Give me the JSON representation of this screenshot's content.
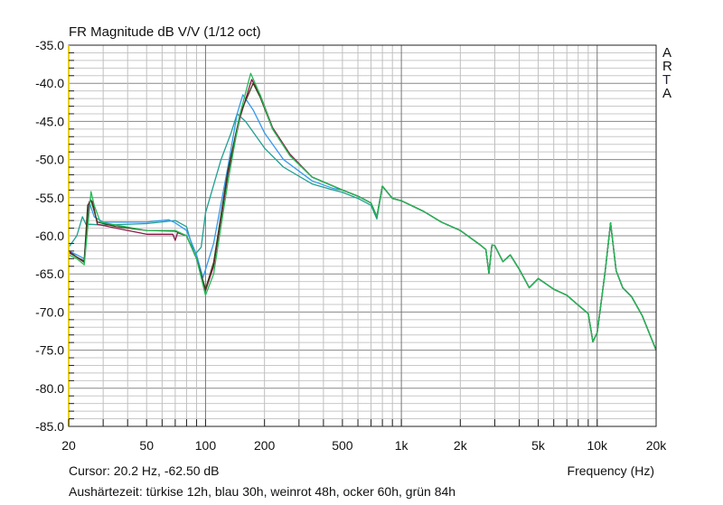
{
  "chart_data": {
    "type": "line",
    "title": "FR Magnitude dB V/V (1/12 oct)",
    "xlabel": "Frequency (Hz)",
    "ylabel": "",
    "xscale": "log",
    "xlim": [
      20,
      20000
    ],
    "ylim": [
      -85,
      -35
    ],
    "grid": true,
    "xticks": [
      {
        "v": 20,
        "label": "20"
      },
      {
        "v": 50,
        "label": "50"
      },
      {
        "v": 100,
        "label": "100"
      },
      {
        "v": 200,
        "label": "200"
      },
      {
        "v": 500,
        "label": "500"
      },
      {
        "v": 1000,
        "label": "1k"
      },
      {
        "v": 2000,
        "label": "2k"
      },
      {
        "v": 5000,
        "label": "5k"
      },
      {
        "v": 10000,
        "label": "10k"
      },
      {
        "v": 20000,
        "label": "20k"
      }
    ],
    "yticks": [
      {
        "v": -35,
        "label": "-35.0"
      },
      {
        "v": -40,
        "label": "-40.0"
      },
      {
        "v": -45,
        "label": "-45.0"
      },
      {
        "v": -50,
        "label": "-50.0"
      },
      {
        "v": -55,
        "label": "-55.0"
      },
      {
        "v": -60,
        "label": "-60.0"
      },
      {
        "v": -65,
        "label": "-65.0"
      },
      {
        "v": -70,
        "label": "-70.0"
      },
      {
        "v": -75,
        "label": "-75.0"
      },
      {
        "v": -80,
        "label": "-80.0"
      },
      {
        "v": -85,
        "label": "-85.0"
      }
    ],
    "brand": [
      "A",
      "R",
      "T",
      "A"
    ],
    "cursor_text": "Cursor: 20.2 Hz, -62.50 dB",
    "caption": "Aushärtezeit: türkise 12h, blau 30h, weinrot 48h, ocker 60h, grün 84h",
    "common_high": [
      [
        500,
        -54
      ],
      [
        600,
        -54.8
      ],
      [
        700,
        -55.7
      ],
      [
        750,
        -57.5
      ],
      [
        800,
        -53.5
      ],
      [
        900,
        -55.1
      ],
      [
        1000,
        -55.4
      ],
      [
        1300,
        -56.8
      ],
      [
        1600,
        -58.2
      ],
      [
        2000,
        -59.3
      ],
      [
        2500,
        -61.1
      ],
      [
        2700,
        -61.8
      ],
      [
        2800,
        -64.9
      ],
      [
        2900,
        -61.2
      ],
      [
        3000,
        -61.3
      ],
      [
        3300,
        -63.4
      ],
      [
        3600,
        -62.5
      ],
      [
        4000,
        -64.4
      ],
      [
        4500,
        -66.8
      ],
      [
        5000,
        -65.6
      ],
      [
        6000,
        -67
      ],
      [
        7000,
        -67.8
      ],
      [
        8000,
        -69.1
      ],
      [
        9000,
        -70.2
      ],
      [
        9500,
        -73.9
      ],
      [
        10000,
        -72.7
      ],
      [
        11000,
        -64.6
      ],
      [
        11700,
        -58.3
      ],
      [
        12500,
        -64.6
      ],
      [
        13500,
        -66.8
      ],
      [
        15000,
        -68
      ],
      [
        17000,
        -70.5
      ],
      [
        20000,
        -75
      ]
    ],
    "series": [
      {
        "name": "türkise 12h",
        "color": "#1fa090",
        "points": [
          [
            20,
            -61.5
          ],
          [
            22,
            -60
          ],
          [
            23.5,
            -57.5
          ],
          [
            24.5,
            -58.5
          ],
          [
            26,
            -58.5
          ],
          [
            30,
            -58.6
          ],
          [
            50,
            -58.4
          ],
          [
            70,
            -58
          ],
          [
            80,
            -58.8
          ],
          [
            88,
            -62.5
          ],
          [
            95,
            -61.5
          ],
          [
            100,
            -57
          ],
          [
            120,
            -50
          ],
          [
            135,
            -46.5
          ],
          [
            145,
            -44
          ],
          [
            160,
            -45
          ],
          [
            200,
            -48.5
          ],
          [
            250,
            -51
          ],
          [
            350,
            -53.2
          ],
          [
            450,
            -54
          ]
        ]
      },
      {
        "name": "blau 30h",
        "color": "#3399ee",
        "points": [
          [
            20,
            -62
          ],
          [
            22,
            -62.5
          ],
          [
            24,
            -63
          ],
          [
            25,
            -57
          ],
          [
            25.5,
            -55.6
          ],
          [
            27,
            -57.5
          ],
          [
            30,
            -58.2
          ],
          [
            50,
            -58.2
          ],
          [
            65,
            -57.9
          ],
          [
            70,
            -58.3
          ],
          [
            80,
            -59.3
          ],
          [
            90,
            -62.5
          ],
          [
            97,
            -65.5
          ],
          [
            110,
            -61
          ],
          [
            130,
            -51
          ],
          [
            145,
            -44
          ],
          [
            155,
            -41.5
          ],
          [
            175,
            -43.5
          ],
          [
            200,
            -46.5
          ],
          [
            250,
            -50
          ],
          [
            350,
            -52.8
          ],
          [
            450,
            -53.8
          ]
        ]
      },
      {
        "name": "weinrot 48h",
        "color": "#8b1a4a",
        "points": [
          [
            20,
            -62
          ],
          [
            22,
            -62.8
          ],
          [
            24,
            -63.5
          ],
          [
            25.5,
            -55.5
          ],
          [
            26.5,
            -55.5
          ],
          [
            28,
            -58.5
          ],
          [
            35,
            -59
          ],
          [
            50,
            -59.8
          ],
          [
            68,
            -59.8
          ],
          [
            70,
            -60.6
          ],
          [
            72,
            -59.6
          ],
          [
            80,
            -60
          ],
          [
            90,
            -63
          ],
          [
            100,
            -67.2
          ],
          [
            110,
            -64
          ],
          [
            130,
            -52
          ],
          [
            150,
            -44.5
          ],
          [
            172,
            -39.5
          ],
          [
            190,
            -41.5
          ],
          [
            220,
            -45.8
          ],
          [
            270,
            -49.3
          ],
          [
            350,
            -52.3
          ],
          [
            450,
            -53.5
          ]
        ]
      },
      {
        "name": "ocker 60h",
        "color": "#3d3a18",
        "points": [
          [
            20,
            -62.2
          ],
          [
            22,
            -62.8
          ],
          [
            24,
            -63.3
          ],
          [
            25,
            -56
          ],
          [
            26,
            -55.3
          ],
          [
            28,
            -58.2
          ],
          [
            35,
            -58.8
          ],
          [
            50,
            -59.3
          ],
          [
            70,
            -59.4
          ],
          [
            80,
            -60
          ],
          [
            90,
            -63
          ],
          [
            100,
            -67
          ],
          [
            110,
            -63.5
          ],
          [
            130,
            -51.5
          ],
          [
            150,
            -44
          ],
          [
            175,
            -40
          ],
          [
            190,
            -41.8
          ],
          [
            220,
            -46
          ],
          [
            270,
            -49.5
          ],
          [
            350,
            -52.3
          ],
          [
            450,
            -53.5
          ]
        ]
      },
      {
        "name": "grün 84h",
        "color": "#22bb55",
        "points": [
          [
            20,
            -62.5
          ],
          [
            22,
            -63
          ],
          [
            24,
            -63.8
          ],
          [
            25,
            -59
          ],
          [
            26,
            -54.2
          ],
          [
            27,
            -56
          ],
          [
            29,
            -58.2
          ],
          [
            35,
            -58.6
          ],
          [
            50,
            -59.3
          ],
          [
            70,
            -59.3
          ],
          [
            80,
            -60
          ],
          [
            90,
            -63
          ],
          [
            100,
            -67.8
          ],
          [
            110,
            -65
          ],
          [
            130,
            -53
          ],
          [
            150,
            -44
          ],
          [
            170,
            -38.7
          ],
          [
            190,
            -41.5
          ],
          [
            220,
            -46
          ],
          [
            270,
            -49.5
          ],
          [
            350,
            -52.3
          ],
          [
            450,
            -53.5
          ]
        ]
      }
    ]
  }
}
